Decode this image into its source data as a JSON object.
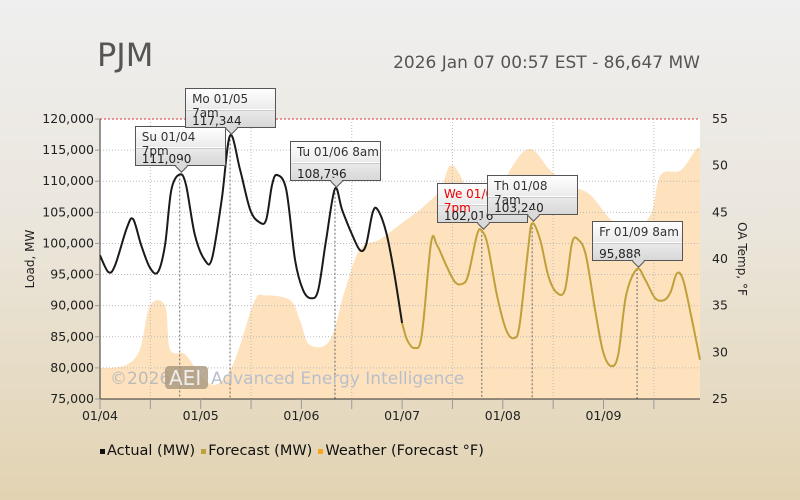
{
  "header": {
    "title": "PJM",
    "status": "2026 Jan 07 00:57 EST - 86,647 MW"
  },
  "watermark": {
    "copyright": "©2026",
    "logo": "AEI",
    "company": "Advanced Energy Intelligence"
  },
  "chart_data": {
    "type": "line",
    "xlabel": "",
    "ylabel": "Load, MW",
    "y2label": "OA Temp, °F",
    "x_unit": "hours since 01/04 00:00",
    "xlim": [
      0,
      143
    ],
    "ylim": [
      75000,
      120000
    ],
    "y2lim": [
      25,
      55
    ],
    "x_ticks": [
      {
        "h": 0,
        "label": "01/04"
      },
      {
        "h": 24,
        "label": "01/05"
      },
      {
        "h": 48,
        "label": "01/06"
      },
      {
        "h": 72,
        "label": "01/07"
      },
      {
        "h": 96,
        "label": "01/08"
      },
      {
        "h": 120,
        "label": "01/09"
      }
    ],
    "y_ticks": [
      "75,000",
      "80,000",
      "85,000",
      "90,000",
      "95,000",
      "100,000",
      "105,000",
      "110,000",
      "115,000",
      "120,000"
    ],
    "y2_ticks": [
      "25",
      "30",
      "35",
      "40",
      "45",
      "50",
      "55"
    ],
    "legend": [
      {
        "name": "Actual (MW)",
        "color": "#111111"
      },
      {
        "name": "Forecast (MW)",
        "color": "#c0a23c"
      },
      {
        "name": "Weather (Forecast °F)",
        "color": "#f6a623"
      }
    ],
    "series": [
      {
        "name": "Actual (MW)",
        "color": "#1a1a1a",
        "points": [
          [
            0,
            98100
          ],
          [
            2,
            95400
          ],
          [
            3.6,
            96500
          ],
          [
            6.4,
            102500
          ],
          [
            7.9,
            103900
          ],
          [
            9.8,
            99750
          ],
          [
            11.9,
            96100
          ],
          [
            13.8,
            95400
          ],
          [
            15.5,
            99750
          ],
          [
            17,
            108600
          ],
          [
            19,
            111090
          ],
          [
            20.5,
            109400
          ],
          [
            22.6,
            101400
          ],
          [
            25,
            97300
          ],
          [
            26.7,
            97600
          ],
          [
            29,
            107000
          ],
          [
            31,
            117344
          ],
          [
            33.4,
            111800
          ],
          [
            35.8,
            105400
          ],
          [
            38,
            103400
          ],
          [
            39.6,
            103800
          ],
          [
            41,
            109400
          ],
          [
            42.2,
            111000
          ],
          [
            44.4,
            108600
          ],
          [
            46.5,
            97300
          ],
          [
            48.4,
            92500
          ],
          [
            50.3,
            91200
          ],
          [
            52,
            92500
          ],
          [
            53.9,
            100600
          ],
          [
            56,
            108796
          ],
          [
            57.7,
            105400
          ],
          [
            60.1,
            101400
          ],
          [
            62,
            98900
          ],
          [
            63.4,
            99750
          ],
          [
            65,
            105000
          ],
          [
            66.2,
            105400
          ],
          [
            68.2,
            101800
          ],
          [
            70,
            95700
          ],
          [
            72,
            87200
          ]
        ]
      },
      {
        "name": "Forecast (MW)",
        "color": "#bfa03a",
        "points": [
          [
            72,
            87200
          ],
          [
            73.2,
            84500
          ],
          [
            75,
            83200
          ],
          [
            76.7,
            85300
          ],
          [
            78.9,
            100100
          ],
          [
            80.3,
            99750
          ],
          [
            82.5,
            96500
          ],
          [
            84.6,
            93800
          ],
          [
            86.3,
            93500
          ],
          [
            87.7,
            94800
          ],
          [
            89.9,
            101500
          ],
          [
            91,
            102016
          ],
          [
            92.4,
            99750
          ],
          [
            94.6,
            91700
          ],
          [
            96.8,
            86100
          ],
          [
            98.7,
            84800
          ],
          [
            100,
            86900
          ],
          [
            102,
            98900
          ],
          [
            103,
            103240
          ],
          [
            104.9,
            100600
          ],
          [
            106.8,
            94900
          ],
          [
            108.7,
            92200
          ],
          [
            110.8,
            92500
          ],
          [
            112.5,
            100100
          ],
          [
            114,
            100600
          ],
          [
            115.8,
            98100
          ],
          [
            118,
            89300
          ],
          [
            119.9,
            82600
          ],
          [
            121.8,
            80300
          ],
          [
            123.5,
            82100
          ],
          [
            125.4,
            91700
          ],
          [
            128,
            95888
          ],
          [
            130,
            94100
          ],
          [
            132.3,
            91200
          ],
          [
            134.5,
            90900
          ],
          [
            136,
            92200
          ],
          [
            137.5,
            95200
          ],
          [
            139,
            94100
          ],
          [
            141,
            88000
          ],
          [
            143,
            81300
          ]
        ]
      },
      {
        "name": "Weather (Forecast °F)",
        "color": "#fde2bd",
        "axis": "y2",
        "points": [
          [
            0,
            28.3
          ],
          [
            6,
            28.6
          ],
          [
            9.5,
            30.3
          ],
          [
            11.9,
            35
          ],
          [
            15.5,
            35
          ],
          [
            16.7,
            30.3
          ],
          [
            20.3,
            29.8
          ],
          [
            23.8,
            27.6
          ],
          [
            27.4,
            26.5
          ],
          [
            31,
            28.1
          ],
          [
            33.4,
            30.8
          ],
          [
            36.9,
            35.6
          ],
          [
            39.3,
            36.1
          ],
          [
            45.3,
            35.6
          ],
          [
            47.7,
            33.4
          ],
          [
            50,
            30.8
          ],
          [
            54.8,
            31.3
          ],
          [
            58.4,
            36.7
          ],
          [
            61.9,
            41
          ],
          [
            66.7,
            42.1
          ],
          [
            71.5,
            43.7
          ],
          [
            76.3,
            45.3
          ],
          [
            81,
            47.4
          ],
          [
            83.4,
            50
          ],
          [
            85.8,
            49
          ],
          [
            88.2,
            46.4
          ],
          [
            93,
            44.7
          ],
          [
            97.7,
            49.5
          ],
          [
            102.5,
            51.8
          ],
          [
            107.3,
            49.5
          ],
          [
            112.1,
            47.9
          ],
          [
            116.8,
            46.9
          ],
          [
            121.6,
            44.3
          ],
          [
            126.4,
            43.1
          ],
          [
            131.2,
            44.7
          ],
          [
            133.6,
            49
          ],
          [
            138.4,
            49.5
          ],
          [
            142,
            51.7
          ],
          [
            143,
            51.9
          ]
        ]
      }
    ],
    "annotations": [
      {
        "h": 19,
        "value": 111090,
        "label": "Su 01/04 7pm",
        "value_label": "111,090",
        "color": "#333333"
      },
      {
        "h": 31,
        "value": 117344,
        "label": "Mo 01/05 7am",
        "value_label": "117,344",
        "color": "#333333"
      },
      {
        "h": 56,
        "value": 108796,
        "label": "Tu 01/06 8am",
        "value_label": "108,796",
        "color": "#333333"
      },
      {
        "h": 91,
        "value": 102016,
        "label": "We 01/07 7pm",
        "value_label": "102,016",
        "color": "#ee0000"
      },
      {
        "h": 103,
        "value": 103240,
        "label": "Th 01/08 7am",
        "value_label": "103,240",
        "color": "#333333"
      },
      {
        "h": 128,
        "value": 95888,
        "label": "Fr 01/09 8am",
        "value_label": "95,888",
        "color": "#333333"
      }
    ]
  }
}
